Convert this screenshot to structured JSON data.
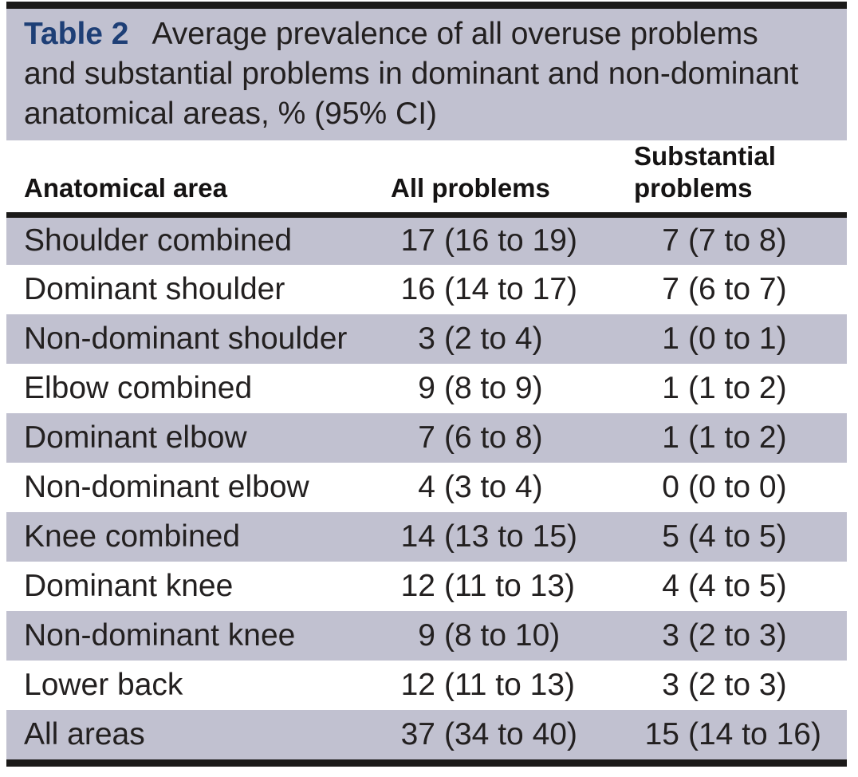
{
  "table": {
    "label": "Table 2",
    "caption": "Average prevalence of all overuse problems and substantial problems in dominant and non-dominant anatomical areas, % (95% CI)",
    "columns": [
      "Anatomical area",
      "All problems",
      "Substantial problems"
    ],
    "rows": [
      {
        "area": "Shoulder combined",
        "all": "17",
        "all_ci": "(16 to 19)",
        "substantial": "7",
        "substantial_ci": "(7 to 8)"
      },
      {
        "area": "Dominant shoulder",
        "all": "16",
        "all_ci": "(14 to 17)",
        "substantial": "7",
        "substantial_ci": "(6 to 7)"
      },
      {
        "area": "Non-dominant shoulder",
        "all": "3",
        "all_ci": "(2 to 4)",
        "substantial": "1",
        "substantial_ci": "(0 to 1)"
      },
      {
        "area": "Elbow combined",
        "all": "9",
        "all_ci": "(8 to 9)",
        "substantial": "1",
        "substantial_ci": "(1 to 2)"
      },
      {
        "area": "Dominant elbow",
        "all": "7",
        "all_ci": "(6 to 8)",
        "substantial": "1",
        "substantial_ci": "(1 to 2)"
      },
      {
        "area": "Non-dominant elbow",
        "all": "4",
        "all_ci": "(3 to 4)",
        "substantial": "0",
        "substantial_ci": "(0 to 0)"
      },
      {
        "area": "Knee combined",
        "all": "14",
        "all_ci": "(13 to 15)",
        "substantial": "5",
        "substantial_ci": "(4 to 5)"
      },
      {
        "area": "Dominant knee",
        "all": "12",
        "all_ci": "(11 to 13)",
        "substantial": "4",
        "substantial_ci": "(4 to 5)"
      },
      {
        "area": "Non-dominant knee",
        "all": "9",
        "all_ci": "(8 to 10)",
        "substantial": "3",
        "substantial_ci": "(2 to 3)"
      },
      {
        "area": "Lower back",
        "all": "12",
        "all_ci": "(11 to 13)",
        "substantial": "3",
        "substantial_ci": "(2 to 3)"
      },
      {
        "area": "All areas",
        "all": "37",
        "all_ci": "(34 to 40)",
        "substantial": "15",
        "substantial_ci": "(14 to 16)"
      }
    ]
  },
  "colors": {
    "shaded_row": "#c1c1d0",
    "table_label": "#1e3f76",
    "rule": "#1b1a19",
    "text": "#232020"
  }
}
